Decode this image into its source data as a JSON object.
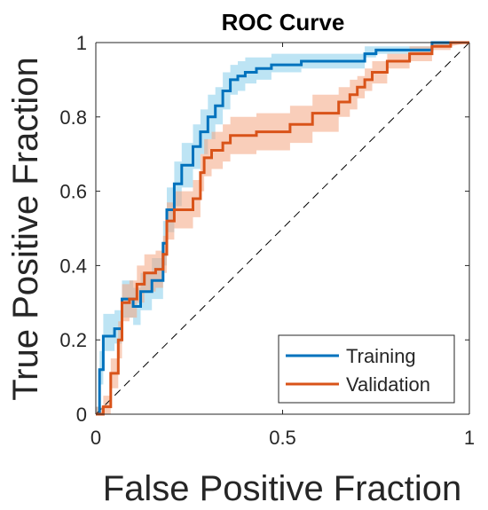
{
  "chart_data": {
    "type": "line",
    "title": "ROC Curve",
    "xlabel": "False Positive Fraction",
    "ylabel": "True Positive Fraction",
    "xlim": [
      0,
      1
    ],
    "ylim": [
      0,
      1
    ],
    "xticks": [
      0,
      0.5,
      1
    ],
    "xtick_labels": [
      "0",
      "0.5",
      "1"
    ],
    "yticks": [
      0,
      0.2,
      0.4,
      0.6,
      0.8,
      1
    ],
    "ytick_labels": [
      "0",
      "0.2",
      "0.4",
      "0.6",
      "0.8",
      "1"
    ],
    "grid": false,
    "legend_position": "bottom-right",
    "reference_line": {
      "style": "dashed",
      "color": "#000000",
      "x": [
        0,
        1
      ],
      "y": [
        0,
        1
      ]
    },
    "series": [
      {
        "name": "Training",
        "color": "#0072BD",
        "band_color": "#87CEEB",
        "x": [
          0,
          0.01,
          0.01,
          0.02,
          0.02,
          0.05,
          0.05,
          0.07,
          0.07,
          0.1,
          0.1,
          0.12,
          0.12,
          0.15,
          0.15,
          0.18,
          0.18,
          0.19,
          0.19,
          0.21,
          0.21,
          0.23,
          0.23,
          0.26,
          0.26,
          0.28,
          0.28,
          0.3,
          0.3,
          0.32,
          0.32,
          0.34,
          0.34,
          0.36,
          0.36,
          0.38,
          0.38,
          0.4,
          0.4,
          0.43,
          0.43,
          0.47,
          0.47,
          0.55,
          0.55,
          0.72,
          0.72,
          0.75,
          0.75,
          0.9,
          0.9,
          1.0
        ],
        "y": [
          0,
          0,
          0.12,
          0.12,
          0.21,
          0.21,
          0.23,
          0.23,
          0.31,
          0.31,
          0.29,
          0.29,
          0.33,
          0.33,
          0.36,
          0.36,
          0.46,
          0.46,
          0.55,
          0.55,
          0.62,
          0.62,
          0.67,
          0.67,
          0.72,
          0.72,
          0.76,
          0.76,
          0.8,
          0.8,
          0.83,
          0.83,
          0.87,
          0.87,
          0.9,
          0.9,
          0.91,
          0.91,
          0.92,
          0.92,
          0.93,
          0.93,
          0.94,
          0.94,
          0.95,
          0.95,
          0.97,
          0.97,
          0.98,
          0.98,
          1.0,
          1.0
        ],
        "band_lower": [
          0,
          0,
          0.08,
          0.08,
          0.17,
          0.17,
          0.19,
          0.19,
          0.26,
          0.26,
          0.24,
          0.24,
          0.28,
          0.28,
          0.31,
          0.31,
          0.4,
          0.4,
          0.49,
          0.49,
          0.56,
          0.56,
          0.61,
          0.61,
          0.66,
          0.66,
          0.7,
          0.7,
          0.74,
          0.74,
          0.78,
          0.78,
          0.82,
          0.82,
          0.86,
          0.86,
          0.87,
          0.87,
          0.89,
          0.89,
          0.9,
          0.9,
          0.92,
          0.92,
          0.93,
          0.93,
          0.96,
          0.96,
          0.97,
          0.97,
          0.99,
          1.0
        ],
        "band_upper": [
          0.02,
          0.02,
          0.17,
          0.17,
          0.27,
          0.27,
          0.28,
          0.28,
          0.36,
          0.36,
          0.34,
          0.34,
          0.38,
          0.38,
          0.42,
          0.42,
          0.52,
          0.52,
          0.61,
          0.61,
          0.68,
          0.68,
          0.73,
          0.73,
          0.78,
          0.78,
          0.82,
          0.82,
          0.86,
          0.86,
          0.88,
          0.88,
          0.92,
          0.92,
          0.94,
          0.94,
          0.95,
          0.95,
          0.96,
          0.96,
          0.96,
          0.96,
          0.97,
          0.97,
          0.97,
          0.97,
          0.99,
          0.99,
          0.99,
          0.99,
          1.0,
          1.0
        ]
      },
      {
        "name": "Validation",
        "color": "#D95319",
        "band_color": "#F4A582",
        "x": [
          0,
          0.02,
          0.02,
          0.04,
          0.04,
          0.06,
          0.06,
          0.07,
          0.07,
          0.09,
          0.09,
          0.11,
          0.11,
          0.13,
          0.13,
          0.16,
          0.16,
          0.18,
          0.18,
          0.19,
          0.19,
          0.21,
          0.21,
          0.26,
          0.26,
          0.28,
          0.28,
          0.29,
          0.29,
          0.31,
          0.31,
          0.34,
          0.34,
          0.36,
          0.36,
          0.43,
          0.43,
          0.52,
          0.52,
          0.58,
          0.58,
          0.65,
          0.65,
          0.68,
          0.68,
          0.7,
          0.7,
          0.72,
          0.72,
          0.74,
          0.74,
          0.78,
          0.78,
          0.84,
          0.84,
          0.9,
          0.9,
          0.95,
          0.95,
          1.0
        ],
        "y": [
          0,
          0,
          0.02,
          0.02,
          0.11,
          0.11,
          0.2,
          0.2,
          0.3,
          0.3,
          0.31,
          0.31,
          0.35,
          0.35,
          0.38,
          0.38,
          0.39,
          0.39,
          0.43,
          0.43,
          0.52,
          0.52,
          0.55,
          0.55,
          0.58,
          0.58,
          0.65,
          0.65,
          0.69,
          0.69,
          0.71,
          0.71,
          0.73,
          0.73,
          0.75,
          0.75,
          0.76,
          0.76,
          0.78,
          0.78,
          0.81,
          0.81,
          0.84,
          0.84,
          0.86,
          0.86,
          0.88,
          0.88,
          0.9,
          0.9,
          0.92,
          0.92,
          0.95,
          0.95,
          0.97,
          0.97,
          0.99,
          0.99,
          1.0,
          1.0
        ],
        "band_lower": [
          0,
          0,
          0,
          0,
          0.07,
          0.07,
          0.15,
          0.15,
          0.25,
          0.25,
          0.26,
          0.26,
          0.3,
          0.3,
          0.33,
          0.33,
          0.34,
          0.34,
          0.38,
          0.38,
          0.47,
          0.47,
          0.5,
          0.5,
          0.53,
          0.53,
          0.6,
          0.6,
          0.64,
          0.64,
          0.66,
          0.66,
          0.68,
          0.68,
          0.7,
          0.7,
          0.71,
          0.71,
          0.73,
          0.73,
          0.76,
          0.76,
          0.8,
          0.8,
          0.82,
          0.82,
          0.85,
          0.85,
          0.87,
          0.87,
          0.89,
          0.89,
          0.93,
          0.93,
          0.95,
          0.95,
          0.98,
          0.98,
          0.99,
          1.0
        ],
        "band_upper": [
          0.02,
          0.02,
          0.05,
          0.05,
          0.15,
          0.15,
          0.25,
          0.25,
          0.35,
          0.35,
          0.36,
          0.36,
          0.4,
          0.4,
          0.43,
          0.43,
          0.44,
          0.44,
          0.48,
          0.48,
          0.57,
          0.57,
          0.6,
          0.6,
          0.63,
          0.63,
          0.7,
          0.7,
          0.74,
          0.74,
          0.76,
          0.76,
          0.78,
          0.78,
          0.8,
          0.8,
          0.81,
          0.81,
          0.83,
          0.83,
          0.86,
          0.86,
          0.88,
          0.88,
          0.9,
          0.9,
          0.91,
          0.91,
          0.93,
          0.93,
          0.95,
          0.95,
          0.97,
          0.97,
          0.99,
          0.99,
          1.0,
          1.0,
          1.0,
          1.0
        ]
      }
    ]
  }
}
